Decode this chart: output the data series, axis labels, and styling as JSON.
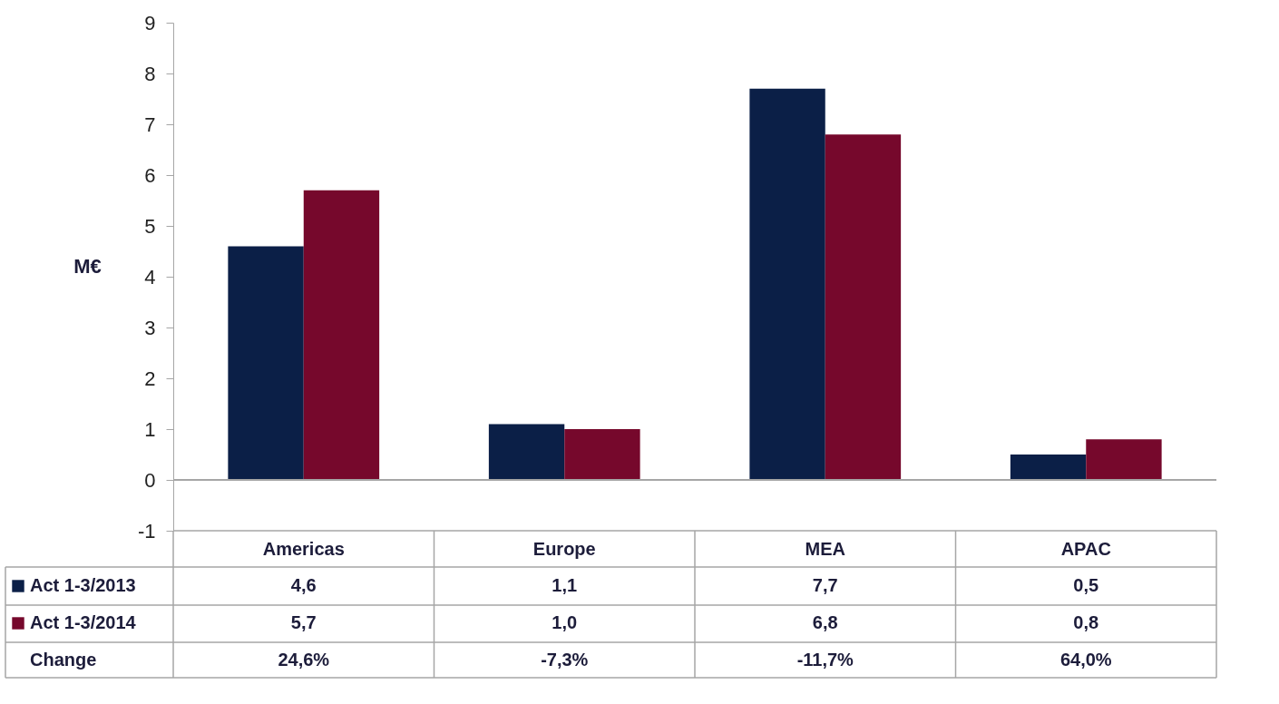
{
  "chart_data": {
    "type": "bar",
    "ylabel": "M€",
    "categories": [
      "Americas",
      "Europe",
      "MEA",
      "APAC"
    ],
    "series": [
      {
        "name": "Act 1-3/2013",
        "color": "#0b1f47",
        "values": [
          4.6,
          1.1,
          7.7,
          0.5
        ],
        "value_labels": [
          "4,6",
          "1,1",
          "7,7",
          "0,5"
        ]
      },
      {
        "name": "Act 1-3/2014",
        "color": "#76082c",
        "values": [
          5.7,
          1.0,
          6.8,
          0.8
        ],
        "value_labels": [
          "5,7",
          "1,0",
          "6,8",
          "0,8"
        ]
      }
    ],
    "ylim": [
      -1,
      9
    ],
    "yticks": [
      -1,
      0,
      1,
      2,
      3,
      4,
      5,
      6,
      7,
      8,
      9
    ],
    "grid": false,
    "legend": "bottom",
    "ref_lines": [
      {
        "axis": "y",
        "value": 0,
        "color": "#a6a6a6"
      }
    ],
    "annotations": [
      "Change",
      "24,6%",
      "-7,3%",
      "-11,7%",
      "64,0%"
    ]
  }
}
